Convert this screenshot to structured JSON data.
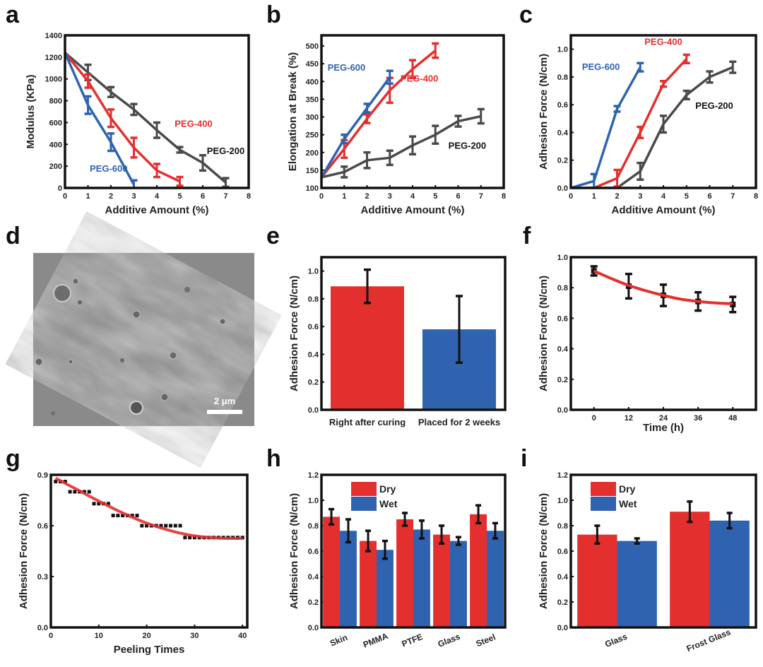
{
  "colors": {
    "red": "#e3302f",
    "blue": "#2f63b0",
    "gray": "#4a4a4a",
    "black": "#111111",
    "sem_bg": "#8a8a8a"
  },
  "panels": {
    "a": "a",
    "b": "b",
    "c": "c",
    "d": "d",
    "e": "e",
    "f": "f",
    "g": "g",
    "h": "h",
    "i": "i"
  },
  "sem_image": {
    "description": "SEM micrograph of surface",
    "scale_bar_label": "2 μm"
  },
  "chart_data": [
    {
      "id": "a",
      "type": "line",
      "xlabel": "Additive Amount (%)",
      "ylabel": "Modulus (KPa)",
      "xlim": [
        0,
        8
      ],
      "ylim": [
        0,
        1400
      ],
      "xticks": [
        0,
        1,
        2,
        3,
        4,
        5,
        6,
        7,
        8
      ],
      "yticks": [
        0,
        200,
        400,
        600,
        800,
        1000,
        1200,
        1400
      ],
      "series": [
        {
          "name": "PEG-200",
          "color": "gray",
          "x": [
            0,
            1,
            2,
            3,
            4,
            5,
            6,
            7
          ],
          "y": [
            1240,
            1060,
            880,
            720,
            530,
            350,
            230,
            50
          ],
          "err": [
            0,
            70,
            45,
            50,
            70,
            25,
            70,
            40
          ]
        },
        {
          "name": "PEG-400",
          "color": "red",
          "x": [
            0,
            1,
            2,
            3,
            4,
            5
          ],
          "y": [
            1240,
            980,
            640,
            370,
            160,
            60
          ],
          "err": [
            0,
            60,
            80,
            90,
            60,
            40
          ]
        },
        {
          "name": "PEG-600",
          "color": "blue",
          "x": [
            0,
            1,
            2,
            3
          ],
          "y": [
            1240,
            760,
            420,
            30
          ],
          "err": [
            0,
            80,
            80,
            40
          ]
        }
      ],
      "annotations": [
        {
          "text": "PEG-400",
          "color": "red",
          "x": 5.6,
          "y": 560
        },
        {
          "text": "PEG-200",
          "color": "black",
          "x": 7.0,
          "y": 310
        },
        {
          "text": "PEG-600",
          "color": "blue",
          "x": 1.9,
          "y": 150
        }
      ]
    },
    {
      "id": "b",
      "type": "line",
      "xlabel": "Additive Amount (%)",
      "ylabel": "Elongation at Break (%)",
      "xlim": [
        0,
        8
      ],
      "ylim": [
        100,
        530
      ],
      "xticks": [
        0,
        1,
        2,
        3,
        4,
        5,
        6,
        7,
        8
      ],
      "yticks": [
        100,
        150,
        200,
        250,
        300,
        350,
        400,
        450,
        500
      ],
      "series": [
        {
          "name": "PEG-200",
          "color": "gray",
          "x": [
            0,
            1,
            2,
            3,
            4,
            5,
            6,
            7
          ],
          "y": [
            130,
            145,
            178,
            185,
            220,
            250,
            288,
            302
          ],
          "err": [
            0,
            15,
            22,
            20,
            25,
            25,
            15,
            20
          ]
        },
        {
          "name": "PEG-400",
          "color": "red",
          "x": [
            0,
            1,
            2,
            3,
            4,
            5
          ],
          "y": [
            130,
            210,
            295,
            375,
            435,
            487
          ],
          "err": [
            0,
            25,
            12,
            35,
            25,
            20
          ]
        },
        {
          "name": "PEG-600",
          "color": "blue",
          "x": [
            0,
            1,
            2,
            3
          ],
          "y": [
            130,
            238,
            325,
            412
          ],
          "err": [
            0,
            12,
            12,
            18
          ]
        }
      ],
      "annotations": [
        {
          "text": "PEG-600",
          "color": "blue",
          "x": 1.1,
          "y": 430
        },
        {
          "text": "PEG-400",
          "color": "red",
          "x": 4.3,
          "y": 400
        },
        {
          "text": "PEG-200",
          "color": "black",
          "x": 6.4,
          "y": 210
        }
      ]
    },
    {
      "id": "c",
      "type": "line",
      "xlabel": "Additive Amount (%)",
      "ylabel": "Adhesion Force (N/cm)",
      "xlim": [
        0,
        8
      ],
      "ylim": [
        0,
        1.1
      ],
      "xticks": [
        0,
        1,
        2,
        3,
        4,
        5,
        6,
        7,
        8
      ],
      "yticks": [
        0.0,
        0.2,
        0.4,
        0.6,
        0.8,
        1.0
      ],
      "series": [
        {
          "name": "PEG-200",
          "color": "gray",
          "x": [
            0,
            1,
            2,
            3,
            4,
            5,
            6,
            7
          ],
          "y": [
            0,
            0,
            0,
            0.12,
            0.46,
            0.67,
            0.8,
            0.87
          ],
          "err": [
            0,
            0,
            0,
            0.06,
            0.06,
            0.03,
            0.04,
            0.04
          ]
        },
        {
          "name": "PEG-400",
          "color": "red",
          "x": [
            0,
            1,
            2,
            3,
            4,
            5
          ],
          "y": [
            0,
            0,
            0.07,
            0.4,
            0.75,
            0.93
          ],
          "err": [
            0,
            0,
            0.06,
            0.04,
            0.02,
            0.03
          ]
        },
        {
          "name": "PEG-600",
          "color": "blue",
          "x": [
            0,
            1,
            2,
            3
          ],
          "y": [
            0,
            0.05,
            0.57,
            0.87
          ],
          "err": [
            0,
            0.05,
            0.02,
            0.03
          ]
        }
      ],
      "annotations": [
        {
          "text": "PEG-600",
          "color": "blue",
          "x": 1.3,
          "y": 0.85
        },
        {
          "text": "PEG-400",
          "color": "red",
          "x": 4.0,
          "y": 1.03
        },
        {
          "text": "PEG-200",
          "color": "black",
          "x": 6.2,
          "y": 0.57
        }
      ]
    },
    {
      "id": "e",
      "type": "bar",
      "xlabel": "",
      "ylabel": "Adhesion Force (N/cm)",
      "ylim": [
        0,
        1.1
      ],
      "yticks": [
        0.0,
        0.2,
        0.4,
        0.6,
        0.8,
        1.0
      ],
      "categories": [
        "Right after curing",
        "Placed for 2 weeks"
      ],
      "values": [
        0.89,
        0.58
      ],
      "err": [
        0.12,
        0.24
      ],
      "bar_colors": [
        "red",
        "blue"
      ]
    },
    {
      "id": "f",
      "type": "scatter",
      "xlabel": "Time (h)",
      "ylabel": "Adhesion Force (N/cm)",
      "xlim": [
        -8,
        56
      ],
      "ylim": [
        0,
        1.0
      ],
      "xticks": [
        0,
        12,
        24,
        36,
        48
      ],
      "yticks": [
        0.0,
        0.2,
        0.4,
        0.6,
        0.8,
        1.0
      ],
      "points": {
        "x": [
          0,
          12,
          24,
          36,
          48
        ],
        "y": [
          0.91,
          0.81,
          0.75,
          0.71,
          0.69
        ],
        "err": [
          0.03,
          0.08,
          0.07,
          0.06,
          0.05
        ]
      },
      "fit": {
        "type": "quadratic",
        "color": "red",
        "x": [
          0,
          6,
          12,
          18,
          24,
          30,
          36,
          42,
          48
        ],
        "y": [
          0.91,
          0.86,
          0.815,
          0.78,
          0.75,
          0.725,
          0.71,
          0.7,
          0.695
        ]
      }
    },
    {
      "id": "g",
      "type": "scatter",
      "xlabel": "Peeling Times",
      "ylabel": "Adhesion Force (N/cm)",
      "xlim": [
        0,
        41
      ],
      "ylim": [
        0,
        0.9
      ],
      "xticks": [
        0,
        10,
        20,
        30,
        40
      ],
      "yticks": [
        0.0,
        0.3,
        0.6,
        0.9
      ],
      "points": {
        "x": [
          1,
          2,
          3,
          4,
          5,
          6,
          7,
          8,
          9,
          10,
          11,
          12,
          13,
          14,
          15,
          16,
          17,
          18,
          19,
          20,
          21,
          22,
          23,
          24,
          25,
          26,
          27,
          28,
          29,
          30,
          31,
          32,
          33,
          34,
          35,
          36,
          37,
          38,
          39,
          40
        ],
        "y": [
          0.86,
          0.86,
          0.86,
          0.8,
          0.8,
          0.8,
          0.8,
          0.8,
          0.73,
          0.73,
          0.73,
          0.73,
          0.66,
          0.66,
          0.66,
          0.66,
          0.66,
          0.66,
          0.6,
          0.6,
          0.6,
          0.6,
          0.6,
          0.6,
          0.6,
          0.6,
          0.6,
          0.53,
          0.53,
          0.53,
          0.53,
          0.53,
          0.53,
          0.53,
          0.53,
          0.53,
          0.53,
          0.53,
          0.53,
          0.53
        ]
      },
      "fit": {
        "type": "quadratic",
        "color": "red",
        "x": [
          1,
          5,
          10,
          15,
          20,
          25,
          30,
          35,
          40
        ],
        "y": [
          0.88,
          0.82,
          0.745,
          0.675,
          0.615,
          0.57,
          0.54,
          0.527,
          0.525
        ]
      }
    },
    {
      "id": "h",
      "type": "bar",
      "xlabel": "",
      "ylabel": "Adhesion Force (N/cm)",
      "ylim": [
        0,
        1.2
      ],
      "yticks": [
        0.0,
        0.2,
        0.4,
        0.6,
        0.8,
        1.0,
        1.2
      ],
      "categories": [
        "Skin",
        "PMMA",
        "PTFE",
        "Glass",
        "Steel"
      ],
      "legend": {
        "position": "top-left",
        "entries": [
          "Dry",
          "Wet"
        ]
      },
      "series": [
        {
          "name": "Dry",
          "color": "red",
          "values": [
            0.87,
            0.68,
            0.85,
            0.73,
            0.89
          ],
          "err": [
            0.06,
            0.08,
            0.05,
            0.07,
            0.07
          ]
        },
        {
          "name": "Wet",
          "color": "blue",
          "values": [
            0.76,
            0.61,
            0.77,
            0.68,
            0.76
          ],
          "err": [
            0.09,
            0.07,
            0.07,
            0.03,
            0.06
          ]
        }
      ]
    },
    {
      "id": "i",
      "type": "bar",
      "xlabel": "",
      "ylabel": "Adhesion Force (N/cm)",
      "ylim": [
        0,
        1.2
      ],
      "yticks": [
        0.0,
        0.2,
        0.4,
        0.6,
        0.8,
        1.0,
        1.2
      ],
      "categories": [
        "Glass",
        "Frost Glass"
      ],
      "legend": {
        "position": "top-left",
        "entries": [
          "Dry",
          "Wet"
        ]
      },
      "series": [
        {
          "name": "Dry",
          "color": "red",
          "values": [
            0.73,
            0.91
          ],
          "err": [
            0.07,
            0.08
          ]
        },
        {
          "name": "Wet",
          "color": "blue",
          "values": [
            0.68,
            0.84
          ],
          "err": [
            0.02,
            0.06
          ]
        }
      ]
    }
  ]
}
